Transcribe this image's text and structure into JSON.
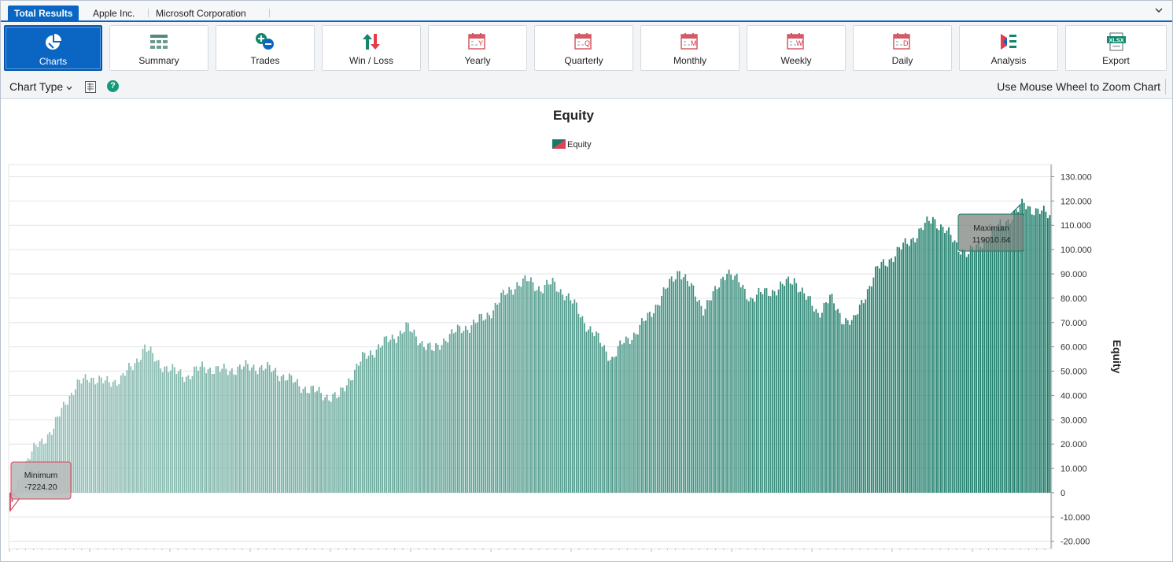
{
  "tabs": [
    {
      "label": "Total Results",
      "active": true
    },
    {
      "label": "Apple Inc.",
      "active": false
    },
    {
      "label": "Microsoft Corporation",
      "active": false
    }
  ],
  "toolbar": {
    "buttons": [
      {
        "label": "Charts",
        "icon": "pie-chart-icon",
        "active": true
      },
      {
        "label": "Summary",
        "icon": "grid-icon"
      },
      {
        "label": "Trades",
        "icon": "plus-minus-icon"
      },
      {
        "label": "Win / Loss",
        "icon": "up-down-arrows-icon"
      },
      {
        "label": "Yearly",
        "icon": "calendar-y-icon",
        "letter": "Y"
      },
      {
        "label": "Quarterly",
        "icon": "calendar-q-icon",
        "letter": "Q"
      },
      {
        "label": "Monthly",
        "icon": "calendar-m-icon",
        "letter": "M"
      },
      {
        "label": "Weekly",
        "icon": "calendar-w-icon",
        "letter": "W"
      },
      {
        "label": "Daily",
        "icon": "calendar-d-icon",
        "letter": "D"
      },
      {
        "label": "Analysis",
        "icon": "analysis-icon"
      },
      {
        "label": "Export",
        "icon": "xlsx-icon",
        "badge": "XLSX"
      }
    ]
  },
  "subbar": {
    "chart_type_label": "Chart Type",
    "help_glyph": "?",
    "zoom_hint": "Use Mouse Wheel to Zoom Chart"
  },
  "colors": {
    "accent": "#0b66c3",
    "equity_dark": "#167a66",
    "equity_light": "#9cc6bd",
    "minimum_marker": "#d9455b",
    "trade_red": "#e33d4a",
    "trade_green": "#11876d"
  },
  "chart_data": {
    "type": "bar",
    "title": "Equity",
    "legend": [
      "Equity"
    ],
    "ylabel": "Equity",
    "ylim": [
      -23000,
      135000
    ],
    "yticks": [
      130000,
      120000,
      110000,
      100000,
      90000,
      80000,
      70000,
      60000,
      50000,
      40000,
      30000,
      20000,
      10000,
      0,
      -10000,
      -20000
    ],
    "ytick_labels": [
      "130.000",
      "120.000",
      "110.000",
      "100.000",
      "90.000",
      "80.000",
      "70.000",
      "60.000",
      "50.000",
      "40.000",
      "30.000",
      "20.000",
      "10.000",
      "0",
      "-10.000",
      "-20.000"
    ],
    "grid": true,
    "legend_position": "top-center",
    "series": [
      {
        "name": "Equity",
        "keypoints": [
          [
            0,
            -7224.2
          ],
          [
            3,
            3000
          ],
          [
            8,
            12000
          ],
          [
            14,
            20000
          ],
          [
            22,
            26000
          ],
          [
            28,
            38000
          ],
          [
            34,
            44000
          ],
          [
            40,
            48000
          ],
          [
            48,
            45000
          ],
          [
            56,
            47000
          ],
          [
            62,
            52000
          ],
          [
            68,
            60000
          ],
          [
            74,
            54000
          ],
          [
            82,
            50000
          ],
          [
            90,
            48000
          ],
          [
            98,
            52000
          ],
          [
            106,
            50000
          ],
          [
            114,
            51000
          ],
          [
            124,
            52000
          ],
          [
            134,
            50000
          ],
          [
            142,
            46000
          ],
          [
            152,
            42000
          ],
          [
            160,
            40000
          ],
          [
            166,
            39000
          ],
          [
            172,
            48000
          ],
          [
            178,
            55000
          ],
          [
            186,
            60000
          ],
          [
            194,
            64000
          ],
          [
            200,
            68000
          ],
          [
            208,
            62000
          ],
          [
            214,
            58000
          ],
          [
            220,
            64000
          ],
          [
            230,
            68000
          ],
          [
            240,
            72000
          ],
          [
            248,
            80000
          ],
          [
            256,
            86000
          ],
          [
            262,
            87000
          ],
          [
            268,
            84000
          ],
          [
            274,
            86000
          ],
          [
            280,
            82000
          ],
          [
            286,
            76000
          ],
          [
            292,
            68000
          ],
          [
            298,
            62000
          ],
          [
            304,
            55000
          ],
          [
            310,
            62000
          ],
          [
            316,
            66000
          ],
          [
            322,
            72000
          ],
          [
            330,
            82000
          ],
          [
            338,
            92000
          ],
          [
            344,
            84000
          ],
          [
            350,
            76000
          ],
          [
            356,
            82000
          ],
          [
            362,
            92000
          ],
          [
            368,
            86000
          ],
          [
            374,
            80000
          ],
          [
            380,
            82000
          ],
          [
            388,
            84000
          ],
          [
            396,
            88000
          ],
          [
            402,
            80000
          ],
          [
            408,
            74000
          ],
          [
            414,
            80000
          ],
          [
            420,
            72000
          ],
          [
            426,
            70000
          ],
          [
            432,
            82000
          ],
          [
            438,
            92000
          ],
          [
            444,
            96000
          ],
          [
            452,
            102000
          ],
          [
            460,
            108000
          ],
          [
            466,
            113000
          ],
          [
            472,
            108000
          ],
          [
            478,
            102000
          ],
          [
            484,
            98000
          ],
          [
            492,
            104000
          ],
          [
            500,
            110000
          ],
          [
            508,
            115000
          ],
          [
            512,
            119010.64
          ],
          [
            518,
            116000
          ],
          [
            525,
            114000
          ]
        ]
      }
    ],
    "bar_count": 526,
    "annotations": [
      {
        "label": "Minimum",
        "value": "-7224.20"
      },
      {
        "label": "Maximum",
        "value": "119010.64"
      }
    ]
  }
}
